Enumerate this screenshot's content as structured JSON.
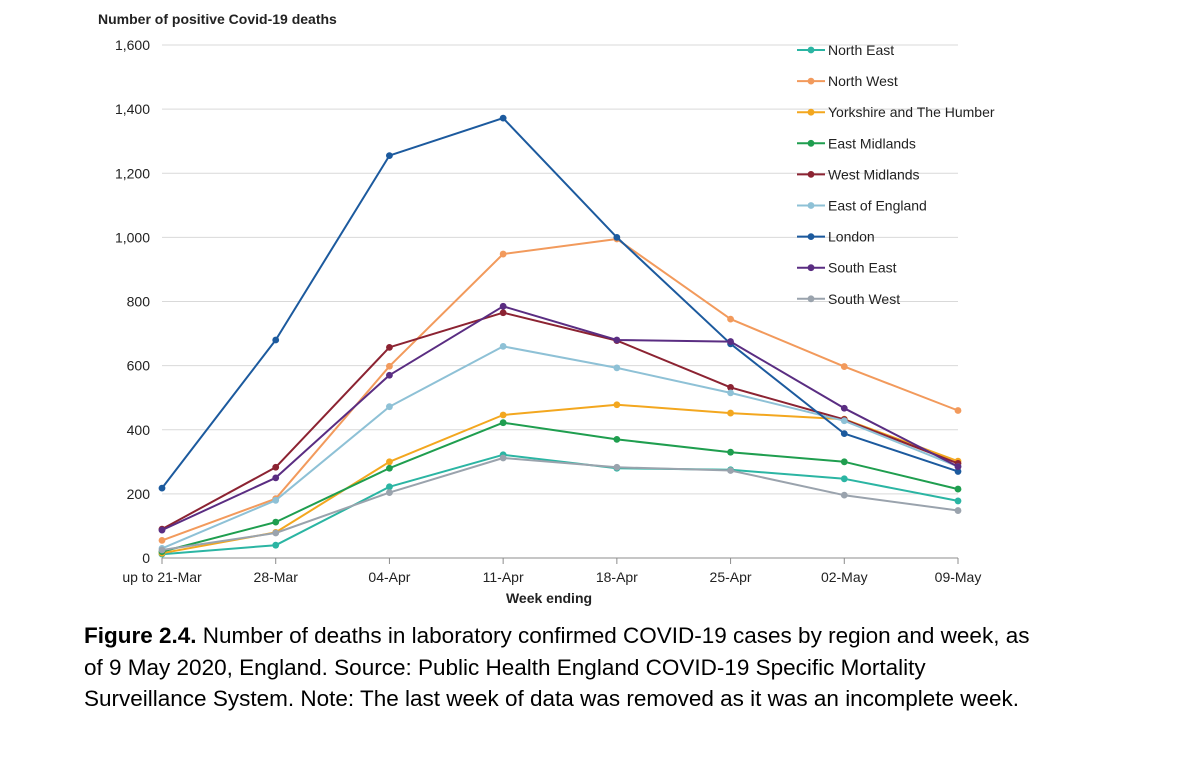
{
  "chart_data": {
    "type": "line",
    "ylabel": "Number of positive Covid-19 deaths",
    "xlabel": "Week ending",
    "ylim": [
      0,
      1600
    ],
    "yticks": [
      0,
      200,
      400,
      600,
      800,
      1000,
      1200,
      1400,
      1600
    ],
    "ytick_labels": [
      "0",
      "200",
      "400",
      "600",
      "800",
      "1,000",
      "1,200",
      "1,400",
      "1,600"
    ],
    "grid": true,
    "legend_position": "top-right",
    "categories": [
      "up to 21-Mar",
      "28-Mar",
      "04-Apr",
      "11-Apr",
      "18-Apr",
      "25-Apr",
      "02-May",
      "09-May"
    ],
    "series": [
      {
        "name": "North East",
        "color": "#2bb5a3",
        "values": [
          12,
          40,
          222,
          322,
          280,
          275,
          247,
          178
        ]
      },
      {
        "name": "North West",
        "color": "#f29a5c",
        "values": [
          55,
          185,
          598,
          948,
          995,
          745,
          597,
          460
        ]
      },
      {
        "name": "Yorkshire and The Humber",
        "color": "#f3a71f",
        "values": [
          15,
          80,
          300,
          446,
          478,
          452,
          433,
          302
        ]
      },
      {
        "name": "East Midlands",
        "color": "#1f9e4f",
        "values": [
          20,
          112,
          280,
          422,
          370,
          330,
          300,
          215
        ]
      },
      {
        "name": "West Midlands",
        "color": "#8c2332",
        "values": [
          90,
          283,
          657,
          765,
          678,
          532,
          432,
          295
        ]
      },
      {
        "name": "East of England",
        "color": "#8ec1d6",
        "values": [
          30,
          180,
          472,
          660,
          593,
          515,
          428,
          285
        ]
      },
      {
        "name": "London",
        "color": "#1c5a9e",
        "values": [
          218,
          680,
          1255,
          1372,
          1000,
          668,
          388,
          270
        ]
      },
      {
        "name": "South East",
        "color": "#5a2d82",
        "values": [
          87,
          250,
          570,
          785,
          680,
          675,
          467,
          285
        ]
      },
      {
        "name": "South West",
        "color": "#9aa3ad",
        "values": [
          25,
          78,
          204,
          312,
          283,
          273,
          196,
          148
        ]
      }
    ]
  },
  "caption": {
    "label": "Figure 2.4.",
    "text": " Number of deaths in laboratory confirmed COVID-19 cases by region and week, as of 9 May 2020, England. Source: Public Health England COVID-19 Specific Mortality Surveillance System. Note: The last week of data was removed as it was an incomplete week."
  }
}
